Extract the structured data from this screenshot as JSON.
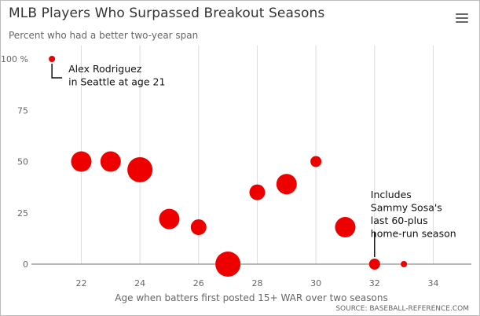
{
  "header": {
    "title": "MLB Players Who Surpassed Breakout Seasons",
    "subtitle": "Percent who had a better two-year span"
  },
  "source": "SOURCE: BASEBALL-REFERENCE.COM",
  "menu_icon": "hamburger-menu-icon",
  "chart_data": {
    "type": "scatter",
    "xlabel": "Age when batters first posted 15+ WAR over two seasons",
    "ylabel": "",
    "xlim": [
      20.3,
      35.3
    ],
    "ylim": [
      0,
      100
    ],
    "x_ticks": [
      "22",
      "24",
      "26",
      "28",
      "30",
      "32",
      "34"
    ],
    "y_ticks": [
      "0",
      "25",
      "50",
      "75",
      "100 %"
    ],
    "grid": "vertical",
    "marker_color": "#ee0000",
    "points": [
      {
        "x": 21,
        "y": 100,
        "size": 1
      },
      {
        "x": 22,
        "y": 50,
        "size": 4
      },
      {
        "x": 23,
        "y": 50,
        "size": 4
      },
      {
        "x": 24,
        "y": 46,
        "size": 5
      },
      {
        "x": 25,
        "y": 22,
        "size": 4
      },
      {
        "x": 26,
        "y": 18,
        "size": 3
      },
      {
        "x": 27,
        "y": 0,
        "size": 5
      },
      {
        "x": 28,
        "y": 35,
        "size": 3
      },
      {
        "x": 29,
        "y": 39,
        "size": 4
      },
      {
        "x": 30,
        "y": 50,
        "size": 2
      },
      {
        "x": 31,
        "y": 18,
        "size": 4
      },
      {
        "x": 32,
        "y": 0,
        "size": 2
      },
      {
        "x": 33,
        "y": 0,
        "size": 1
      }
    ],
    "annotations": [
      {
        "lines": [
          "Alex Rodriguez",
          "in Seattle at age 21"
        ],
        "point_index": 0
      },
      {
        "lines": [
          "Includes",
          "Sammy Sosa's",
          "last 60-plus",
          "home-run season"
        ],
        "point_index": 11
      }
    ]
  }
}
